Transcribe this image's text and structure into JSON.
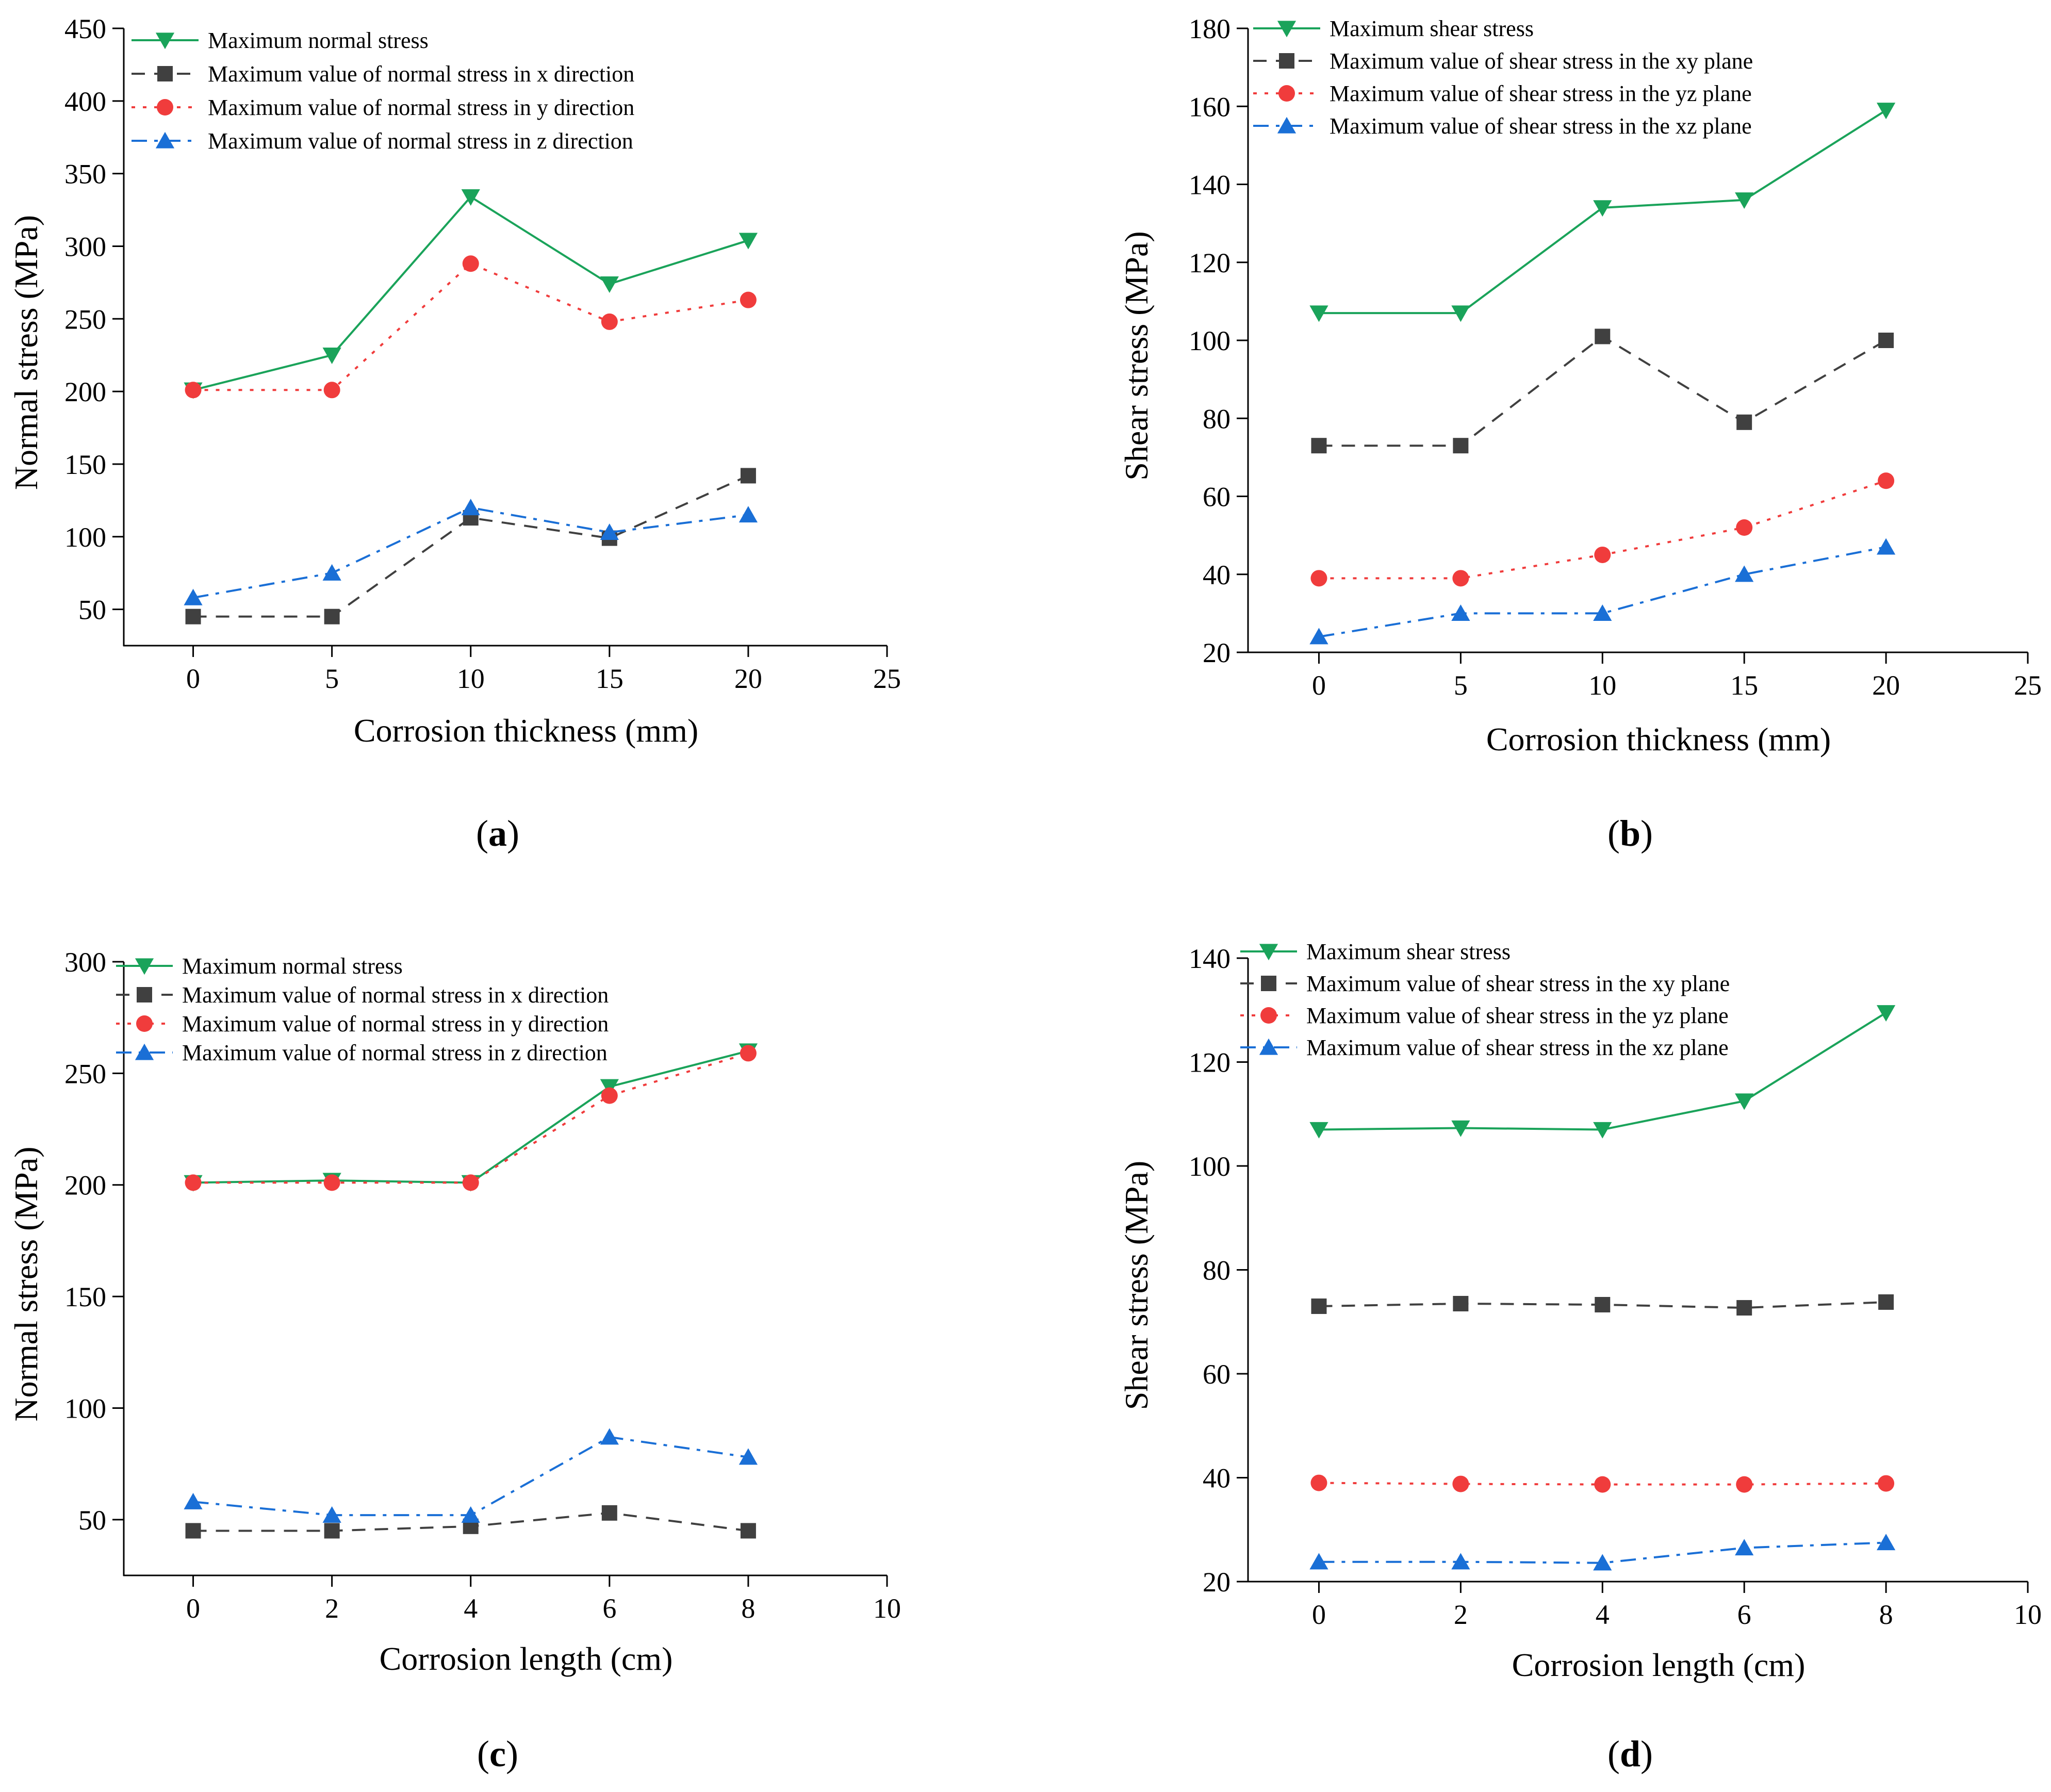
{
  "chart_data": [
    {
      "type": "line",
      "panel_id": "a",
      "panel_label_open": "(",
      "panel_label_letter": "a",
      "panel_label_close": ")",
      "xlabel": "Corrosion thickness (mm)",
      "ylabel": "Normal stress (MPa)",
      "xlim": [
        -2.5,
        25
      ],
      "ylim": [
        25,
        450
      ],
      "xticks": [
        0,
        5,
        10,
        15,
        20,
        25
      ],
      "yticks": [
        50,
        100,
        150,
        200,
        250,
        300,
        350,
        400,
        450
      ],
      "x": [
        0,
        5,
        10,
        15,
        20
      ],
      "legend_position": "top-left",
      "series": [
        {
          "name": "Maximum normal stress",
          "color": "#1aa35a",
          "dash": "solid",
          "marker": "triangle-down",
          "values": [
            201,
            225,
            334,
            274,
            304
          ]
        },
        {
          "name": "Maximum value of normal stress in x direction",
          "color": "#404040",
          "dash": "dash",
          "marker": "square",
          "values": [
            45,
            45,
            113,
            99,
            142
          ]
        },
        {
          "name": "Maximum value of normal stress in y direction",
          "color": "#f03c3c",
          "dash": "dot",
          "marker": "circle",
          "values": [
            201,
            201,
            288,
            248,
            263
          ]
        },
        {
          "name": "Maximum value of normal stress in z direction",
          "color": "#1a6fd6",
          "dash": "dashdot",
          "marker": "triangle-up",
          "values": [
            58,
            75,
            120,
            103,
            115
          ]
        }
      ]
    },
    {
      "type": "line",
      "panel_id": "b",
      "panel_label_open": "(",
      "panel_label_letter": "b",
      "panel_label_close": ")",
      "xlabel": "Corrosion thickness (mm)",
      "ylabel": "Shear stress (MPa)",
      "xlim": [
        -2.5,
        25
      ],
      "ylim": [
        20,
        180
      ],
      "xticks": [
        0,
        5,
        10,
        15,
        20,
        25
      ],
      "yticks": [
        20,
        40,
        60,
        80,
        100,
        120,
        140,
        160,
        180
      ],
      "x": [
        0,
        5,
        10,
        15,
        20
      ],
      "legend_position": "top-left",
      "series": [
        {
          "name": "Maximum shear stress",
          "color": "#1aa35a",
          "dash": "solid",
          "marker": "triangle-down",
          "values": [
            107,
            107,
            134,
            136,
            159
          ]
        },
        {
          "name": "Maximum value of shear stress in the xy plane",
          "color": "#404040",
          "dash": "dash",
          "marker": "square",
          "values": [
            73,
            73,
            101,
            79,
            100
          ]
        },
        {
          "name": "Maximum value of shear stress in the yz plane",
          "color": "#f03c3c",
          "dash": "dot",
          "marker": "circle",
          "values": [
            39,
            39,
            45,
            52,
            64
          ]
        },
        {
          "name": "Maximum value of shear stress in the xz plane",
          "color": "#1a6fd6",
          "dash": "dashdot",
          "marker": "triangle-up",
          "values": [
            24,
            30,
            30,
            40,
            47
          ]
        }
      ]
    },
    {
      "type": "line",
      "panel_id": "c",
      "panel_label_open": "(",
      "panel_label_letter": "c",
      "panel_label_close": ")",
      "xlabel": "Corrosion length (cm)",
      "ylabel": "Normal stress (MPa)",
      "xlim": [
        -1,
        10
      ],
      "ylim": [
        25,
        300
      ],
      "xticks": [
        0,
        2,
        4,
        6,
        8,
        10
      ],
      "yticks": [
        50,
        100,
        150,
        200,
        250,
        300
      ],
      "x": [
        0,
        2,
        4,
        6,
        8
      ],
      "legend_position": "top-left",
      "series": [
        {
          "name": "Maximum normal stress",
          "color": "#1aa35a",
          "dash": "solid",
          "marker": "triangle-down",
          "values": [
            201,
            202,
            201,
            244,
            260
          ]
        },
        {
          "name": "Maximum value of normal stress in x direction",
          "color": "#404040",
          "dash": "dash",
          "marker": "square",
          "values": [
            45,
            45,
            47,
            53,
            45
          ]
        },
        {
          "name": "Maximum value of normal stress in y direction",
          "color": "#f03c3c",
          "dash": "dot",
          "marker": "circle",
          "values": [
            201,
            201,
            201,
            240,
            259
          ]
        },
        {
          "name": "Maximum value of normal stress in z direction",
          "color": "#1a6fd6",
          "dash": "dashdot",
          "marker": "triangle-up",
          "values": [
            58,
            52,
            52,
            87,
            78
          ]
        }
      ]
    },
    {
      "type": "line",
      "panel_id": "d",
      "panel_label_open": "(",
      "panel_label_letter": "d",
      "panel_label_close": ")",
      "xlabel": "Corrosion length (cm)",
      "ylabel": "Shear stress (MPa)",
      "xlim": [
        -1,
        10
      ],
      "ylim": [
        20,
        140
      ],
      "xticks": [
        0,
        2,
        4,
        6,
        8,
        10
      ],
      "yticks": [
        20,
        40,
        60,
        80,
        100,
        120,
        140
      ],
      "x": [
        0,
        2,
        4,
        6,
        8
      ],
      "legend_position": "top-left",
      "series": [
        {
          "name": "Maximum shear stress",
          "color": "#1aa35a",
          "dash": "solid",
          "marker": "triangle-down",
          "values": [
            107,
            107.3,
            107,
            112.5,
            129.5
          ]
        },
        {
          "name": "Maximum value of shear stress in the xy plane",
          "color": "#404040",
          "dash": "dash",
          "marker": "square",
          "values": [
            73,
            73.5,
            73.3,
            72.7,
            73.8
          ]
        },
        {
          "name": "Maximum value of shear stress in the yz plane",
          "color": "#f03c3c",
          "dash": "dot",
          "marker": "circle",
          "values": [
            39,
            38.8,
            38.7,
            38.7,
            38.9
          ]
        },
        {
          "name": "Maximum value of shear stress in the xz plane",
          "color": "#1a6fd6",
          "dash": "dashdot",
          "marker": "triangle-up",
          "values": [
            23.8,
            23.8,
            23.6,
            26.5,
            27.5
          ]
        }
      ]
    }
  ]
}
